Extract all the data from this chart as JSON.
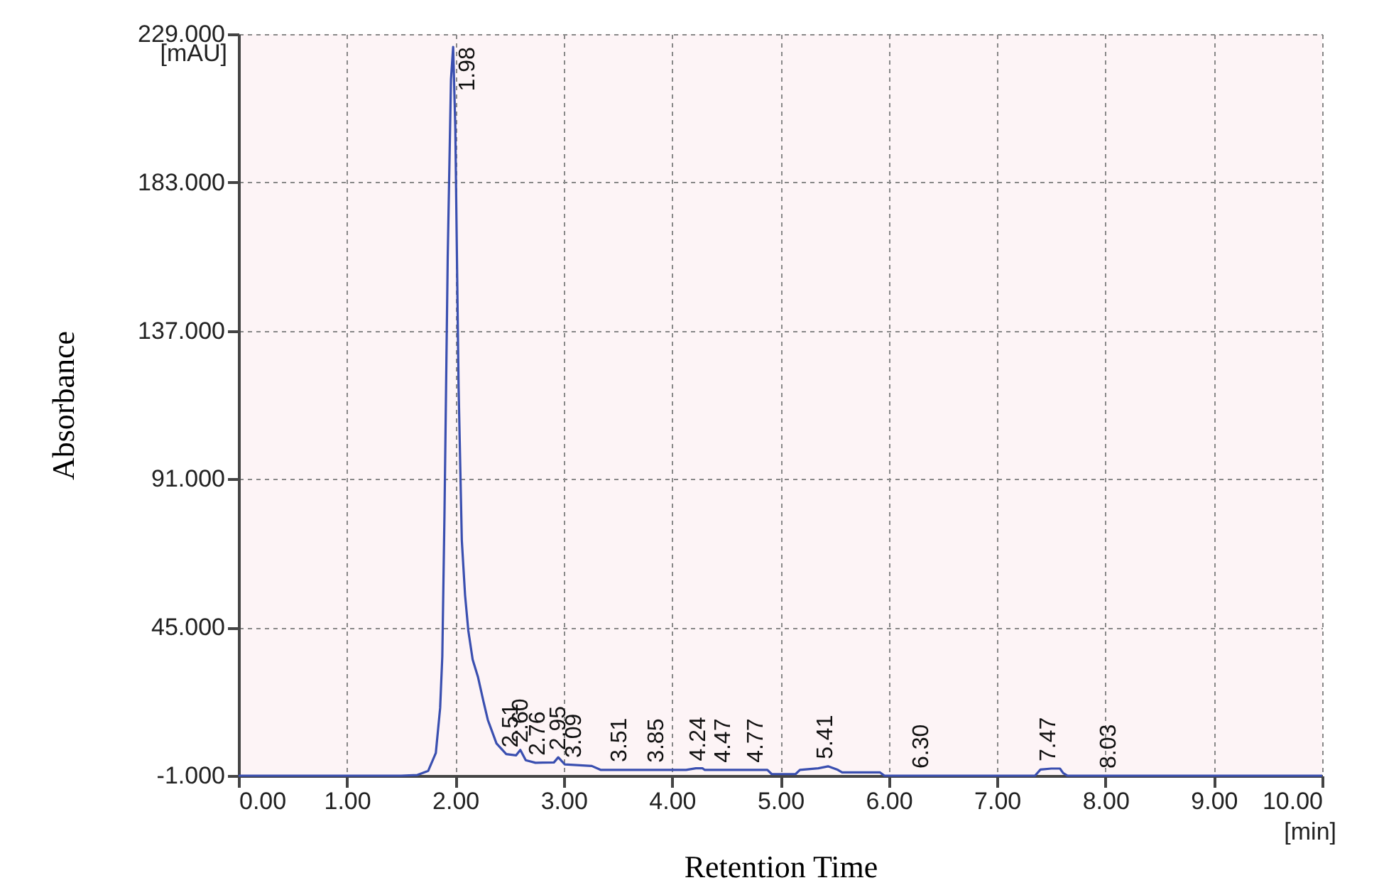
{
  "chart_data": {
    "type": "line",
    "xlabel": "Retention Time",
    "ylabel": "Absorbance",
    "xlim": [
      0,
      10
    ],
    "ylim": [
      -1,
      229
    ],
    "xticks": [
      {
        "value": 0,
        "label": "0.00"
      },
      {
        "value": 1,
        "label": "1.00"
      },
      {
        "value": 2,
        "label": "2.00"
      },
      {
        "value": 3,
        "label": "3.00"
      },
      {
        "value": 4,
        "label": "4.00"
      },
      {
        "value": 5,
        "label": "5.00"
      },
      {
        "value": 6,
        "label": "6.00"
      },
      {
        "value": 7,
        "label": "7.00"
      },
      {
        "value": 8,
        "label": "8.00"
      },
      {
        "value": 9,
        "label": "9.00"
      },
      {
        "value": 10,
        "label": "10.00"
      }
    ],
    "yticks": [
      {
        "value": -1,
        "label": "-1.000"
      },
      {
        "value": 45,
        "label": "45.000"
      },
      {
        "value": 91,
        "label": "91.000"
      },
      {
        "value": 137,
        "label": "137.000"
      },
      {
        "value": 183,
        "label": "183.000"
      },
      {
        "value": 229,
        "label": "229.000"
      }
    ],
    "grid": true,
    "marker": "none",
    "line_style": "solid",
    "series": [
      {
        "color": "#3a4fb0",
        "x": [
          0,
          1.5,
          1.65,
          1.75,
          1.82,
          1.86,
          1.88,
          1.9,
          1.93,
          1.96,
          1.98,
          2.0,
          2.03,
          2.06,
          2.09,
          2.12,
          2.16,
          2.21,
          2.26,
          2.3,
          2.38,
          2.47,
          2.56,
          2.6,
          2.65,
          2.74,
          2.91,
          2.95,
          3.01,
          3.26,
          3.34,
          4.13,
          4.22,
          4.28,
          4.3,
          4.88,
          4.92,
          5.14,
          5.18,
          5.35,
          5.44,
          5.53,
          5.57,
          5.92,
          5.96,
          7.35,
          7.4,
          7.5,
          7.58,
          7.61,
          7.65,
          10
        ],
        "values": [
          -1,
          -1,
          -0.8,
          0.5,
          6,
          20,
          36,
          80,
          160,
          215,
          225,
          200,
          120,
          72,
          55,
          44,
          35,
          29.5,
          22,
          16.3,
          9,
          5.7,
          5.3,
          7,
          3.8,
          3,
          3.1,
          4.7,
          2.5,
          2,
          0.8,
          0.8,
          1.3,
          1.3,
          0.8,
          0.8,
          -0.5,
          -0.5,
          0.8,
          1.3,
          1.9,
          0.8,
          0,
          0,
          -1,
          -1,
          0.9,
          1.2,
          1.2,
          -0.2,
          -1,
          -1
        ]
      }
    ],
    "annotations": [
      {
        "text": "1.98",
        "x": 1.98,
        "y": 225
      },
      {
        "text": "2.51",
        "x": 2.51,
        "y": 5.5
      },
      {
        "text": "2.60",
        "x": 2.6,
        "y": 7
      },
      {
        "text": "2.76",
        "x": 2.76,
        "y": 3
      },
      {
        "text": "2.95",
        "x": 2.95,
        "y": 4.7
      },
      {
        "text": "3.09",
        "x": 3.09,
        "y": 2.3
      },
      {
        "text": "3.51",
        "x": 3.51,
        "y": 1
      },
      {
        "text": "3.85",
        "x": 3.85,
        "y": 0.8
      },
      {
        "text": "4.24",
        "x": 4.24,
        "y": 1.3
      },
      {
        "text": "4.47",
        "x": 4.47,
        "y": 0.8
      },
      {
        "text": "4.77",
        "x": 4.77,
        "y": 0.8
      },
      {
        "text": "5.41",
        "x": 5.41,
        "y": 1.9
      },
      {
        "text": "6.30",
        "x": 6.3,
        "y": -1
      },
      {
        "text": "7.47",
        "x": 7.47,
        "y": 1.2
      },
      {
        "text": "8.03",
        "x": 8.03,
        "y": -1
      },
      "[mAU]",
      "[min]"
    ]
  }
}
